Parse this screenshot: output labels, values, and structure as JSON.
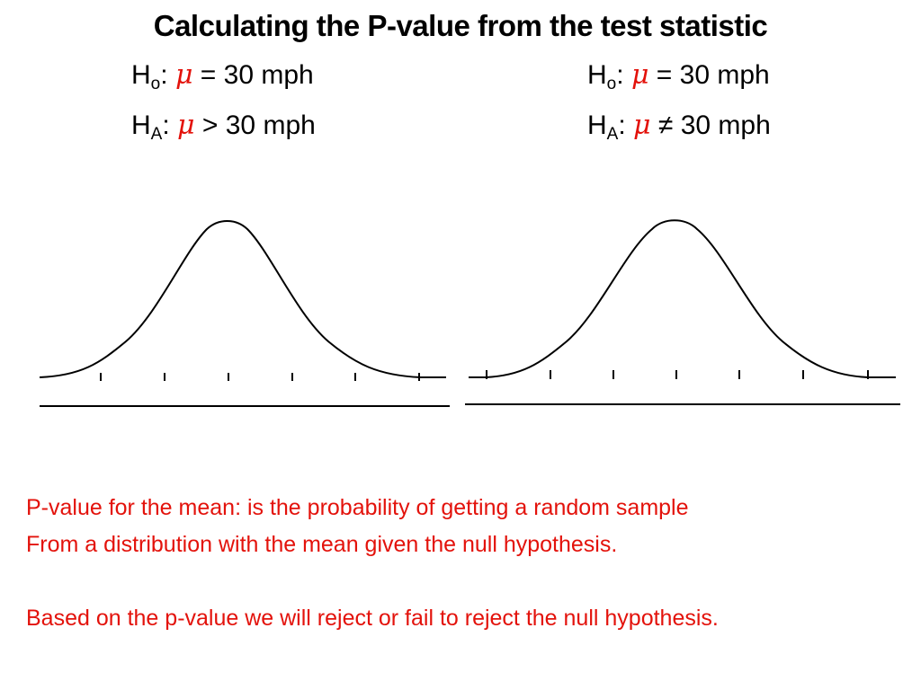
{
  "title": "Calculating the P-value from the test statistic",
  "left_hypotheses": {
    "null": {
      "letter": "H",
      "sub": "o",
      "sep": ":",
      "symbol": "μ",
      "rest": "= 30 mph"
    },
    "alt": {
      "letter": "H",
      "sub": "A",
      "sep": ":",
      "symbol": "μ",
      "rest": "> 30 mph"
    }
  },
  "right_hypotheses": {
    "null": {
      "letter": "H",
      "sub": "o",
      "sep": ":",
      "symbol": "μ",
      "rest": "= 30 mph"
    },
    "alt": {
      "letter": "H",
      "sub": "A",
      "sep": ":",
      "symbol": "μ",
      "rest": "≠ 30 mph"
    }
  },
  "notes": {
    "line1": "P-value for the mean: is the probability of getting a random sample",
    "line2": "From a distribution with the mean given the null hypothesis.",
    "line3": "Based on the p-value we will reject or fail to reject the null hypothesis."
  },
  "colors": {
    "accent_red": "#e3120b",
    "text": "#000000",
    "background": "#ffffff"
  }
}
